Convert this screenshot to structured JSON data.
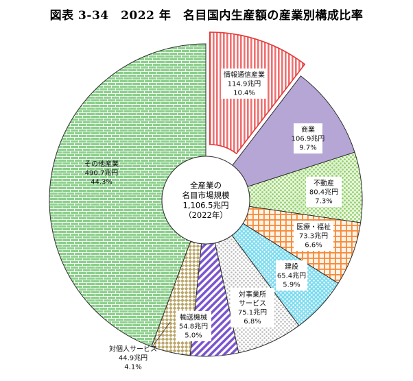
{
  "title": "図表 3-34　2022 年　名目国内生産額の産業別構成比率",
  "chart_data": {
    "type": "pie",
    "donut": true,
    "center_label": [
      "全産業の",
      "名目市場規模",
      "1,106.5兆円",
      "（2022年）"
    ],
    "slices": [
      {
        "name": "情報通信産業",
        "value": 114.9,
        "value_label": "114.9兆円",
        "percent_label": "10.4%",
        "percent": 10.4,
        "color": "#ff8f8f",
        "pattern": "vlines"
      },
      {
        "name": "商業",
        "value": 106.9,
        "value_label": "106.9兆円",
        "percent_label": "9.7%",
        "percent": 9.7,
        "color": "#b5a6d6",
        "pattern": "solid"
      },
      {
        "name": "不動産",
        "value": 80.4,
        "value_label": "80.4兆円",
        "percent_label": "7.3%",
        "percent": 7.3,
        "color": "#b8e09a",
        "pattern": "dots"
      },
      {
        "name": "医療・福祉",
        "value": 73.3,
        "value_label": "73.3兆円",
        "percent_label": "6.6%",
        "percent": 6.6,
        "color": "#f7a96e",
        "pattern": "grid"
      },
      {
        "name": "建設",
        "value": 65.4,
        "value_label": "65.4兆円",
        "percent_label": "5.9%",
        "percent": 5.9,
        "color": "#5cd1e8",
        "pattern": "dots"
      },
      {
        "name": "対事業所サービス",
        "value": 75.1,
        "value_label": "75.1兆円",
        "percent_label": "6.8%",
        "percent": 6.8,
        "color": "#bdbdbd",
        "pattern": "dots"
      },
      {
        "name": "輸送機械",
        "value": 54.8,
        "value_label": "54.8兆円",
        "percent_label": "5.0%",
        "percent": 5.0,
        "color": "#8e6fd6",
        "pattern": "diag"
      },
      {
        "name": "対個人サービス",
        "value": 44.9,
        "value_label": "44.9兆円",
        "percent_label": "4.1%",
        "percent": 4.1,
        "color": "#c2b07a",
        "pattern": "checker"
      },
      {
        "name": "その他産業",
        "value": 490.7,
        "value_label": "490.7兆円",
        "percent_label": "44.3%",
        "percent": 44.3,
        "color": "#7fc87f",
        "pattern": "brick"
      }
    ]
  }
}
